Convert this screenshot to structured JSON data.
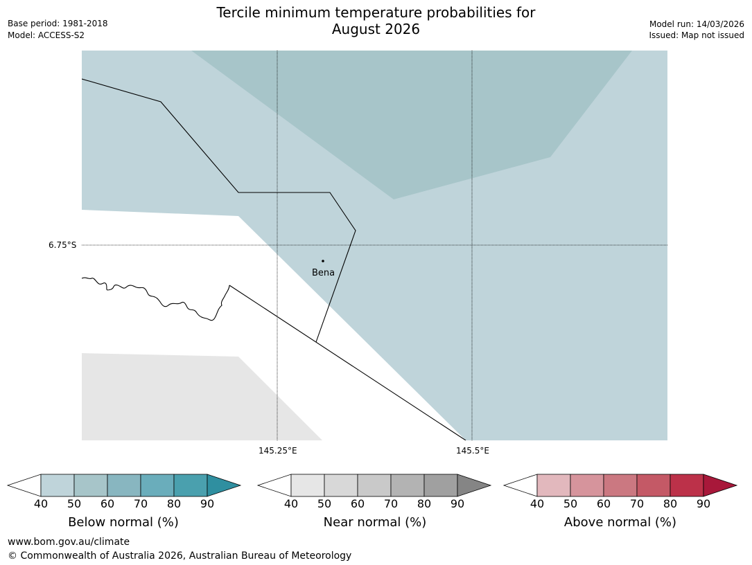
{
  "title_line1": "Tercile minimum temperature probabilities for",
  "title_line2": "August 2026",
  "base_period": "Base period: 1981-2018",
  "model": "Model: ACCESS-S2",
  "model_run": "Model run: 14/03/2026",
  "issued": "Issued: Map not issued",
  "map": {
    "lat_label": "6.75°S",
    "lon_labels": [
      "145.25°E",
      "145.5°E"
    ],
    "place": "Bena",
    "colors": {
      "below_40": "#bfd4da",
      "below_50": "#a7c5c9",
      "near_40": "#e6e6e6",
      "land_line": "#000000"
    }
  },
  "colorbars": [
    {
      "title": "Below normal (%)",
      "ticks": [
        "40",
        "50",
        "60",
        "70",
        "80",
        "90"
      ],
      "colors": [
        "#bfd4da",
        "#a7c5c9",
        "#88b6c0",
        "#6aadbb",
        "#4aa0ae",
        "#2f8fa0"
      ]
    },
    {
      "title": "Near normal (%)",
      "ticks": [
        "40",
        "50",
        "60",
        "70",
        "80",
        "90"
      ],
      "colors": [
        "#e6e6e6",
        "#d8d8d8",
        "#c9c9c9",
        "#b3b3b3",
        "#a0a0a0",
        "#858585"
      ]
    },
    {
      "title": "Above normal (%)",
      "ticks": [
        "40",
        "50",
        "60",
        "70",
        "80",
        "90"
      ],
      "colors": [
        "#e2b8bd",
        "#d6949c",
        "#cb7881",
        "#c45966",
        "#bc3149",
        "#a8183a"
      ]
    }
  ],
  "footer_url": "www.bom.gov.au/climate",
  "footer_copyright": "© Commonwealth of Australia 2026, Australian Bureau of Meteorology"
}
